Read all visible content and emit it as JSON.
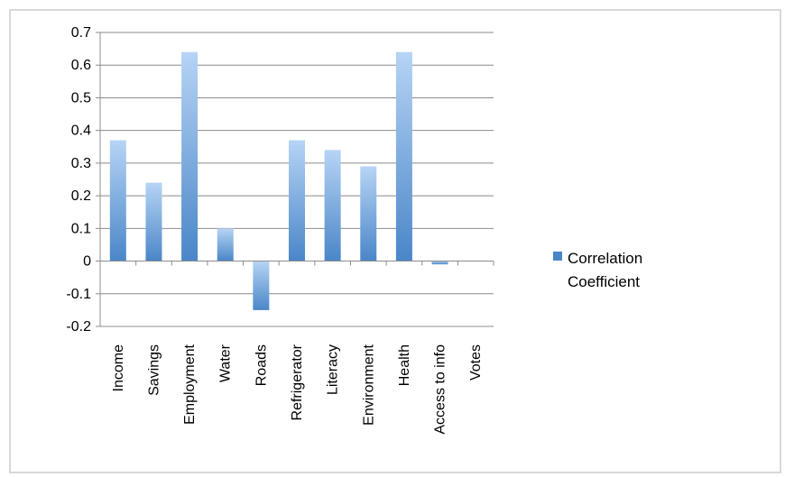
{
  "chart_data": {
    "type": "bar",
    "categories": [
      "Income",
      "Savings",
      "Employment",
      "Water",
      "Roads",
      "Refrigerator",
      "Literacy",
      "Environment",
      "Health",
      "Access to info",
      "Votes"
    ],
    "series": [
      {
        "name": "Correlation Coefficient",
        "values": [
          0.37,
          0.24,
          0.64,
          0.1,
          -0.15,
          0.37,
          0.34,
          0.29,
          0.64,
          -0.01,
          0.0
        ]
      }
    ],
    "yticks": [
      "0.7",
      "0.6",
      "0.5",
      "0.4",
      "0.3",
      "0.2",
      "0.1",
      "0",
      "-0.1",
      "-0.2"
    ],
    "ylim": [
      -0.2,
      0.7
    ],
    "title": "",
    "xlabel": "",
    "ylabel": "",
    "grid": true,
    "legend": {
      "position": "right",
      "lines": [
        "Correlation",
        "Coefficient"
      ]
    },
    "colors": {
      "bar_dark": "#4a86c8",
      "bar_light": "#b6d4f5",
      "grid": "#8c8c8c",
      "frame": "#d9d9d9"
    }
  }
}
